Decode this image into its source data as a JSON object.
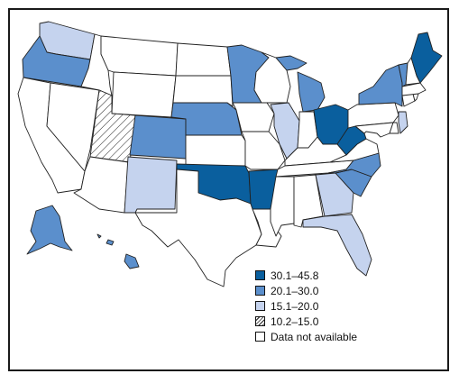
{
  "colors": {
    "c1": "#0a5f9e",
    "c2": "#5b8fcc",
    "c3": "#c5d3ee",
    "c4": "#ffffff",
    "c5": "#ffffff",
    "outline": "#222222"
  },
  "legend": {
    "items": [
      {
        "label": "30.1–45.8",
        "color": "#0a5f9e",
        "pattern": "solid"
      },
      {
        "label": "20.1–30.0",
        "color": "#5b8fcc",
        "pattern": "solid"
      },
      {
        "label": "15.1–20.0",
        "color": "#c5d3ee",
        "pattern": "solid"
      },
      {
        "label": "10.2–15.0",
        "color": "#ffffff",
        "pattern": "hatch"
      },
      {
        "label": "Data not available",
        "color": "#ffffff",
        "pattern": "solid"
      }
    ]
  },
  "states": {
    "30.1-45.8": [
      "ME",
      "OH",
      "WV",
      "OK",
      "AR"
    ],
    "20.1-30.0": [
      "OR",
      "CO",
      "NE",
      "MN",
      "MI",
      "NY",
      "VT",
      "NC",
      "SC",
      "AK",
      "HI"
    ],
    "15.1-20.0": [
      "WA",
      "NM",
      "IL",
      "NJ",
      "GA",
      "FL"
    ],
    "10.2-15.0": [
      "UT"
    ]
  }
}
